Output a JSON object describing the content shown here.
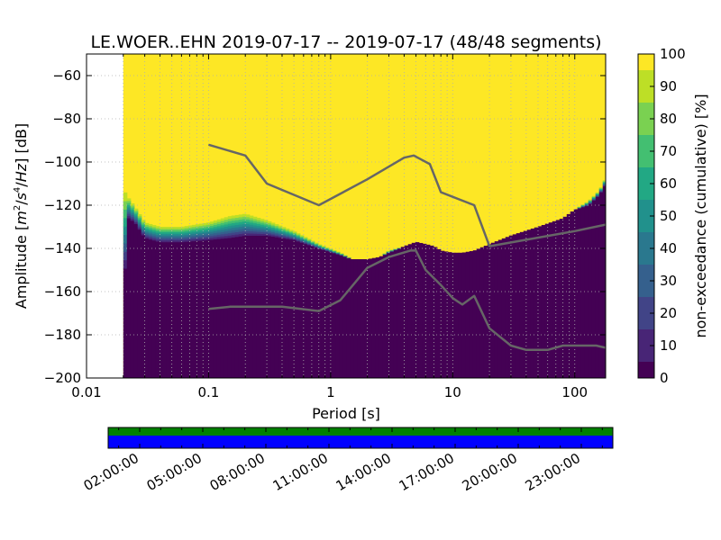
{
  "chart_data": {
    "type": "heatmap",
    "title": "LE.WOER..EHN   2019-07-17 -- 2019-07-17  (48/48 segments)",
    "xlabel": "Period [s]",
    "ylabel": "Amplitude [m²/s⁴/Hz] [dB]",
    "ylabel_parts": [
      "Amplitude [",
      "m",
      "2",
      "/",
      "s",
      "4",
      "/",
      "Hz",
      "] [dB]"
    ],
    "xscale": "log",
    "xlim": [
      0.01,
      179
    ],
    "ylim": [
      -200,
      -50
    ],
    "grid": true,
    "x_ticks": [
      {
        "value": 0.01,
        "label": "0.01"
      },
      {
        "value": 0.1,
        "label": "0.1"
      },
      {
        "value": 1,
        "label": "1"
      },
      {
        "value": 10,
        "label": "10"
      },
      {
        "value": 100,
        "label": "100"
      }
    ],
    "y_ticks": [
      {
        "value": -60,
        "label": "−60"
      },
      {
        "value": -80,
        "label": "−80"
      },
      {
        "value": -100,
        "label": "−100"
      },
      {
        "value": -120,
        "label": "−120"
      },
      {
        "value": -140,
        "label": "−140"
      },
      {
        "value": -160,
        "label": "−160"
      },
      {
        "value": -180,
        "label": "−180"
      },
      {
        "value": -200,
        "label": "−200"
      }
    ],
    "colorbar": {
      "label": "non-exceedance (cumulative) [%]",
      "range": [
        0,
        100
      ],
      "ticks": [
        {
          "value": 0,
          "label": "0"
        },
        {
          "value": 10,
          "label": "10"
        },
        {
          "value": 20,
          "label": "20"
        },
        {
          "value": 30,
          "label": "30"
        },
        {
          "value": 40,
          "label": "40"
        },
        {
          "value": 50,
          "label": "50"
        },
        {
          "value": 60,
          "label": "60"
        },
        {
          "value": 70,
          "label": "70"
        },
        {
          "value": 80,
          "label": "80"
        },
        {
          "value": 90,
          "label": "90"
        },
        {
          "value": 100,
          "label": "100"
        }
      ],
      "colors": [
        "#440154",
        "#482576",
        "#414487",
        "#35608d",
        "#2a788e",
        "#21918c",
        "#22a884",
        "#43bf71",
        "#7ad151",
        "#bddf26",
        "#fde725"
      ]
    },
    "data_start_period": 0.02,
    "density_edges": {
      "period": [
        0.02,
        0.021,
        0.025,
        0.03,
        0.04,
        0.06,
        0.1,
        0.15,
        0.2,
        0.3,
        0.5,
        0.8,
        1.2,
        1.5,
        2,
        2.5,
        3,
        4,
        5,
        6,
        7,
        8,
        10,
        12,
        15,
        20,
        30,
        50,
        80,
        100,
        130,
        160,
        179
      ],
      "lower_bound": [
        -205,
        -125,
        -128,
        -135,
        -137,
        -137,
        -136,
        -135,
        -134,
        -134,
        -136,
        -140,
        -143,
        -145,
        -145,
        -144,
        -142,
        -139,
        -137,
        -138,
        -139,
        -141,
        -142,
        -142,
        -141,
        -138,
        -134,
        -130,
        -126,
        -122,
        -120,
        -115,
        -110
      ],
      "upper_bound": [
        -112,
        -115,
        -121,
        -128,
        -130,
        -130,
        -128,
        -125,
        -124,
        -127,
        -132,
        -138,
        -142,
        -145,
        -145,
        -144,
        -141,
        -139,
        -137,
        -138,
        -139,
        -141,
        -142,
        -142,
        -141,
        -138,
        -134,
        -130,
        -126,
        -122,
        -118,
        -113,
        -107
      ]
    },
    "series": [
      {
        "x": [
          0.1,
          0.2,
          0.3,
          0.8,
          2,
          4,
          4.8,
          6.5,
          8,
          15,
          20,
          40,
          100,
          179
        ],
        "y": [
          -92,
          -97,
          -110,
          -120,
          -108,
          -98,
          -97,
          -101,
          -114,
          -120,
          -139,
          -136,
          -132,
          -129
        ]
      },
      {
        "x": [
          0.1,
          0.15,
          0.2,
          0.4,
          0.8,
          1.2,
          2,
          3,
          4.5,
          5,
          6,
          8,
          10,
          12,
          15,
          20,
          30,
          40,
          60,
          80,
          100,
          150,
          179
        ],
        "y": [
          -168,
          -167,
          -167,
          -167,
          -169,
          -164,
          -149,
          -144,
          -141,
          -141,
          -150,
          -157,
          -163,
          -166,
          -162,
          -177,
          -185,
          -187,
          -187,
          -185,
          -185,
          -185,
          -186
        ]
      }
    ],
    "time_coverage": {
      "tick_labels": [
        "02:00:00",
        "05:00:00",
        "08:00:00",
        "11:00:00",
        "14:00:00",
        "17:00:00",
        "20:00:00",
        "23:00:00"
      ],
      "tick_hours": [
        2,
        5,
        8,
        11,
        14,
        17,
        20,
        23
      ],
      "range_hours": [
        0.5,
        24.5
      ],
      "top_color": "#008000",
      "bottom_color": "#0000ff"
    }
  }
}
